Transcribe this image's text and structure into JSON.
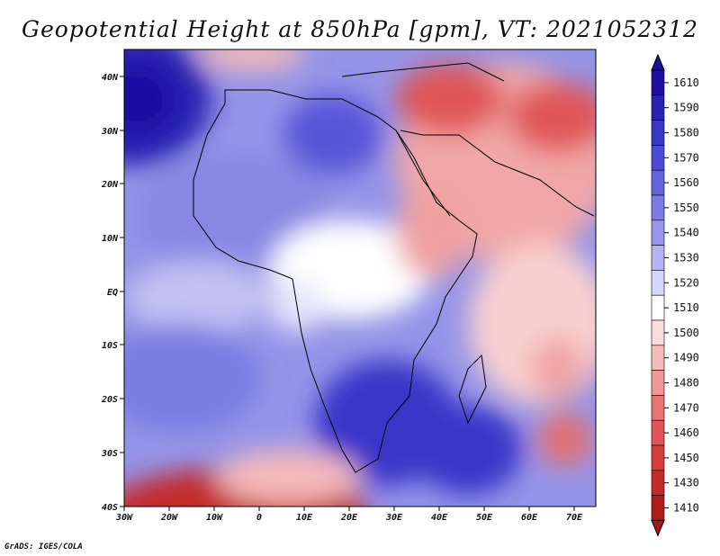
{
  "title": "Geopotential Height at 850hPa [gpm], VT: 2021052312",
  "credit": "GrADS: IGES/COLA",
  "map": {
    "region": "Africa and Middle East",
    "lat_labels": [
      "40N",
      "30N",
      "20N",
      "10N",
      "EQ",
      "10S",
      "20S",
      "30S",
      "40S"
    ],
    "lon_labels": [
      "30W",
      "20W",
      "10W",
      "0",
      "10E",
      "20E",
      "30E",
      "40E",
      "50E",
      "60E",
      "70E"
    ]
  },
  "colorbar": {
    "levels": [
      "1610",
      "1590",
      "1580",
      "1570",
      "1560",
      "1550",
      "1540",
      "1530",
      "1520",
      "1510",
      "1500",
      "1490",
      "1480",
      "1470",
      "1460",
      "1450",
      "1430",
      "1410"
    ],
    "colors": [
      "#1d0ea0",
      "#2a22b4",
      "#3b36c8",
      "#4f4ad4",
      "#6563dc",
      "#7c7be3",
      "#9796ea",
      "#b5b4f2",
      "#d6d6f9",
      "#ffffff",
      "#fbdcdc",
      "#f5baba",
      "#ef9898",
      "#e87474",
      "#e05656",
      "#d63e3e",
      "#c42a2a",
      "#ae1c1c"
    ],
    "low_color": "#a21818"
  }
}
